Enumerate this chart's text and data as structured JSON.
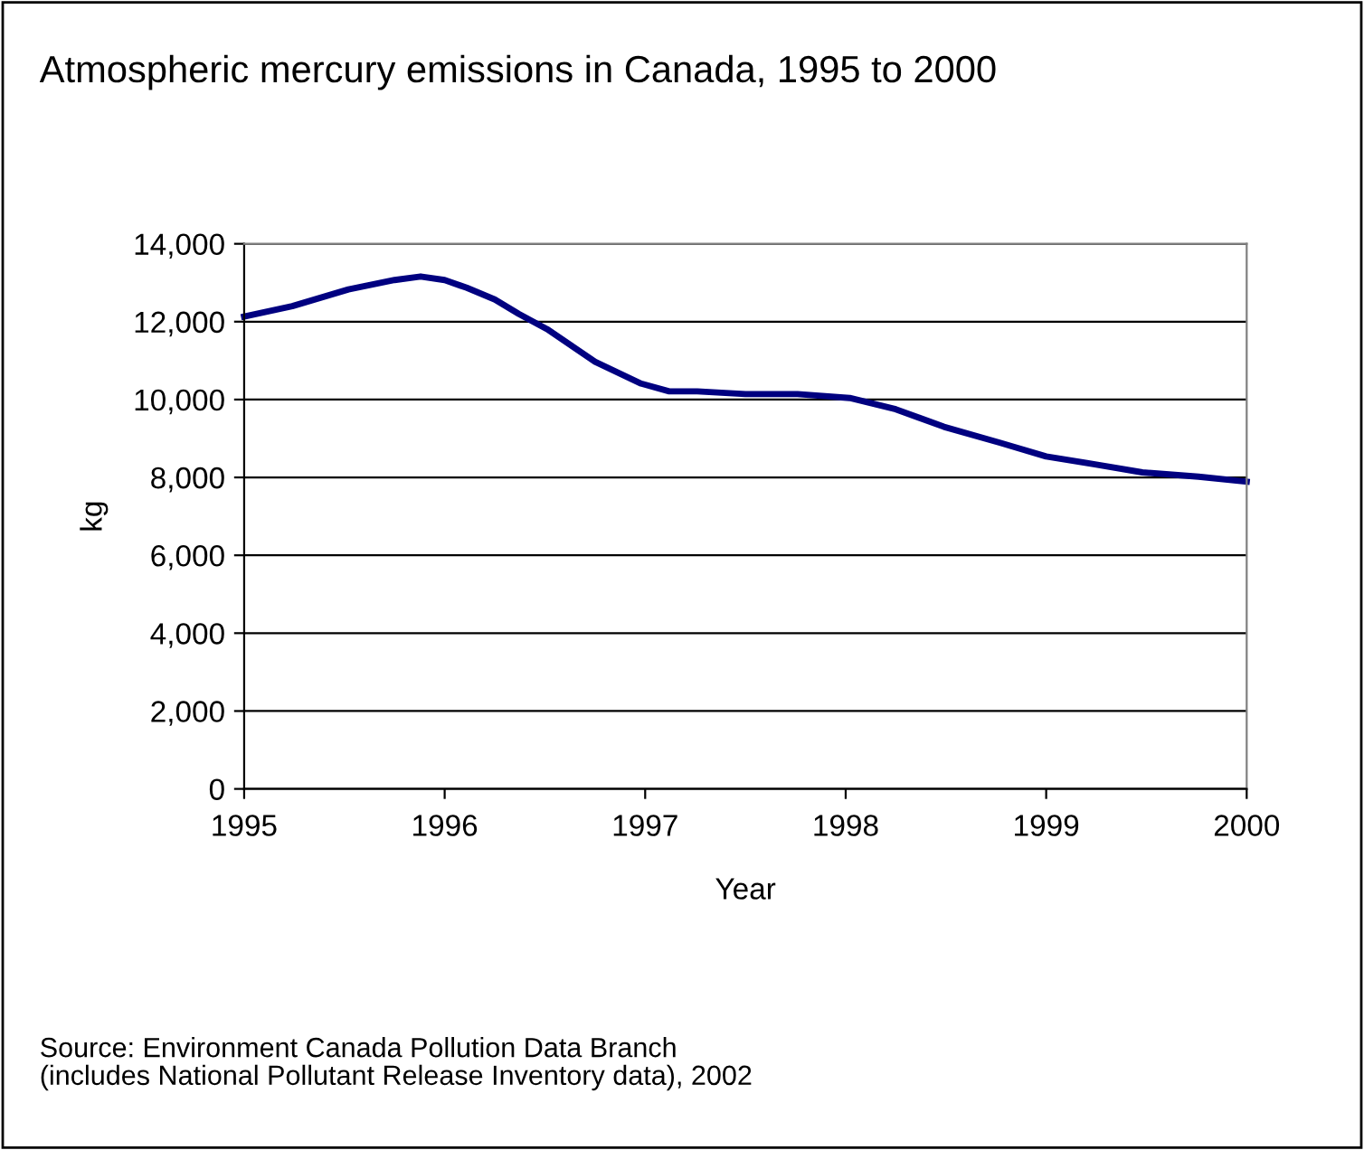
{
  "chart_data": {
    "type": "line",
    "title": "Atmospheric mercury emissions in Canada, 1995 to 2000",
    "xlabel": "Year",
    "ylabel": "kg",
    "annotations": [
      "Source: Environment Canada Pollution Data Branch\n(includes National Pollutant Release Inventory data), 2002"
    ],
    "x": [
      1995,
      1995.24,
      1995.52,
      1995.75,
      1995.88,
      1996,
      1996.11,
      1996.25,
      1996.37,
      1996.51,
      1996.75,
      1996.98,
      1997.12,
      1997.26,
      1997.5,
      1997.76,
      1998.02,
      1998.25,
      1998.49,
      1998.77,
      1999,
      1999.25,
      1999.48,
      1999.76,
      2000
    ],
    "series": [
      {
        "color": "#000080",
        "values": [
          12130,
          12400,
          12830,
          13070,
          13160,
          13070,
          12870,
          12570,
          12200,
          11810,
          10970,
          10410,
          10210,
          10210,
          10140,
          10140,
          10040,
          9750,
          9300,
          8890,
          8540,
          8330,
          8130,
          8020,
          7890
        ]
      }
    ],
    "xlim": [
      1995,
      2000
    ],
    "xticks": [
      1995,
      1996,
      1997,
      1998,
      1999,
      2000
    ],
    "ylim": [
      0,
      14000
    ],
    "yticks": [
      {
        "value": 0,
        "label": "0"
      },
      {
        "value": 2000,
        "label": "2,000"
      },
      {
        "value": 4000,
        "label": "4,000"
      },
      {
        "value": 6000,
        "label": "6,000"
      },
      {
        "value": 8000,
        "label": "8,000"
      },
      {
        "value": 10000,
        "label": "10,000"
      },
      {
        "value": 12000,
        "label": "12,000"
      },
      {
        "value": 14000,
        "label": "14,000"
      }
    ],
    "grid": "y",
    "marker": "none",
    "line_style": "solid"
  }
}
